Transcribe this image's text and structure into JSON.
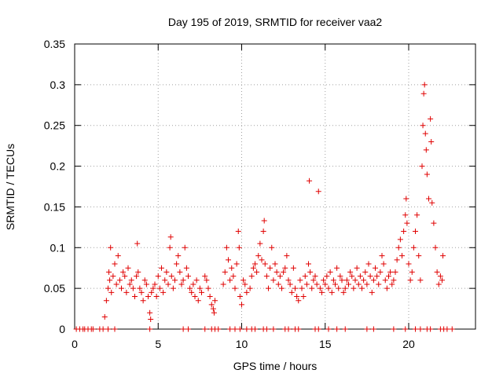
{
  "chart_data": {
    "type": "scatter",
    "title": "Day 195 of 2019, SRMTID for receiver vaa2",
    "xlabel": "GPS time / hours",
    "ylabel": "SRMTID / TECUs",
    "xlim": [
      0,
      24
    ],
    "ylim": [
      0,
      0.35
    ],
    "xticks": [
      0,
      5,
      10,
      15,
      20
    ],
    "xtick_labels": [
      "0",
      "5",
      "10",
      "15",
      "20"
    ],
    "yticks": [
      0,
      0.05,
      0.1,
      0.15,
      0.2,
      0.25,
      0.3,
      0.35
    ],
    "ytick_labels": [
      "0",
      "0.05",
      "0.1",
      "0.15",
      "0.2",
      "0.25",
      "0.3",
      "0.35"
    ],
    "grid": true,
    "marker": "plus",
    "series": [
      {
        "name": "SRMTID",
        "color": "#e00000",
        "points": [
          [
            1.8,
            0.015
          ],
          [
            1.9,
            0.035
          ],
          [
            2.0,
            0.05
          ],
          [
            2.05,
            0.07
          ],
          [
            2.1,
            0.06
          ],
          [
            2.15,
            0.1
          ],
          [
            2.2,
            0.045
          ],
          [
            2.3,
            0.065
          ],
          [
            2.4,
            0.08
          ],
          [
            2.5,
            0.055
          ],
          [
            2.6,
            0.09
          ],
          [
            2.7,
            0.06
          ],
          [
            2.8,
            0.05
          ],
          [
            2.9,
            0.07
          ],
          [
            3.0,
            0.065
          ],
          [
            3.1,
            0.045
          ],
          [
            3.2,
            0.075
          ],
          [
            3.3,
            0.055
          ],
          [
            3.4,
            0.06
          ],
          [
            3.5,
            0.05
          ],
          [
            3.6,
            0.04
          ],
          [
            3.7,
            0.065
          ],
          [
            3.75,
            0.105
          ],
          [
            3.8,
            0.07
          ],
          [
            3.9,
            0.05
          ],
          [
            4.0,
            0.045
          ],
          [
            4.1,
            0.035
          ],
          [
            4.2,
            0.06
          ],
          [
            4.3,
            0.055
          ],
          [
            4.4,
            0.04
          ],
          [
            4.5,
            0.02
          ],
          [
            4.55,
            0.012
          ],
          [
            4.6,
            0.045
          ],
          [
            4.7,
            0.05
          ],
          [
            4.8,
            0.055
          ],
          [
            4.9,
            0.04
          ],
          [
            5.0,
            0.065
          ],
          [
            5.1,
            0.05
          ],
          [
            5.2,
            0.075
          ],
          [
            5.3,
            0.045
          ],
          [
            5.4,
            0.06
          ],
          [
            5.5,
            0.07
          ],
          [
            5.6,
            0.055
          ],
          [
            5.7,
            0.1
          ],
          [
            5.75,
            0.113
          ],
          [
            5.8,
            0.065
          ],
          [
            5.9,
            0.05
          ],
          [
            6.0,
            0.06
          ],
          [
            6.1,
            0.08
          ],
          [
            6.2,
            0.09
          ],
          [
            6.3,
            0.07
          ],
          [
            6.4,
            0.055
          ],
          [
            6.5,
            0.06
          ],
          [
            6.6,
            0.1
          ],
          [
            6.7,
            0.075
          ],
          [
            6.8,
            0.065
          ],
          [
            6.9,
            0.05
          ],
          [
            7.0,
            0.045
          ],
          [
            7.1,
            0.055
          ],
          [
            7.2,
            0.04
          ],
          [
            7.3,
            0.06
          ],
          [
            7.4,
            0.035
          ],
          [
            7.5,
            0.05
          ],
          [
            7.6,
            0.045
          ],
          [
            7.8,
            0.065
          ],
          [
            7.9,
            0.06
          ],
          [
            8.0,
            0.05
          ],
          [
            8.1,
            0.04
          ],
          [
            8.2,
            0.03
          ],
          [
            8.3,
            0.025
          ],
          [
            8.35,
            0.02
          ],
          [
            8.4,
            0.035
          ],
          [
            8.9,
            0.055
          ],
          [
            9.0,
            0.07
          ],
          [
            9.1,
            0.1
          ],
          [
            9.2,
            0.085
          ],
          [
            9.3,
            0.06
          ],
          [
            9.4,
            0.075
          ],
          [
            9.5,
            0.065
          ],
          [
            9.6,
            0.05
          ],
          [
            9.7,
            0.08
          ],
          [
            9.8,
            0.12
          ],
          [
            9.85,
            0.1
          ],
          [
            9.9,
            0.04
          ],
          [
            10.0,
            0.03
          ],
          [
            10.1,
            0.06
          ],
          [
            10.2,
            0.055
          ],
          [
            10.3,
            0.045
          ],
          [
            10.5,
            0.05
          ],
          [
            10.6,
            0.065
          ],
          [
            10.7,
            0.075
          ],
          [
            10.8,
            0.08
          ],
          [
            10.9,
            0.07
          ],
          [
            11.0,
            0.09
          ],
          [
            11.1,
            0.105
          ],
          [
            11.2,
            0.085
          ],
          [
            11.3,
            0.12
          ],
          [
            11.35,
            0.133
          ],
          [
            11.4,
            0.08
          ],
          [
            11.5,
            0.065
          ],
          [
            11.6,
            0.05
          ],
          [
            11.7,
            0.075
          ],
          [
            11.8,
            0.1
          ],
          [
            11.9,
            0.06
          ],
          [
            12.0,
            0.08
          ],
          [
            12.1,
            0.07
          ],
          [
            12.2,
            0.055
          ],
          [
            12.3,
            0.065
          ],
          [
            12.4,
            0.05
          ],
          [
            12.5,
            0.07
          ],
          [
            12.6,
            0.075
          ],
          [
            12.7,
            0.09
          ],
          [
            12.8,
            0.06
          ],
          [
            12.9,
            0.055
          ],
          [
            13.0,
            0.045
          ],
          [
            13.1,
            0.075
          ],
          [
            13.2,
            0.05
          ],
          [
            13.3,
            0.04
          ],
          [
            13.4,
            0.035
          ],
          [
            13.5,
            0.06
          ],
          [
            13.6,
            0.05
          ],
          [
            13.7,
            0.04
          ],
          [
            13.8,
            0.065
          ],
          [
            13.9,
            0.055
          ],
          [
            14.0,
            0.08
          ],
          [
            14.05,
            0.182
          ],
          [
            14.1,
            0.07
          ],
          [
            14.2,
            0.05
          ],
          [
            14.3,
            0.06
          ],
          [
            14.4,
            0.065
          ],
          [
            14.5,
            0.055
          ],
          [
            14.6,
            0.169
          ],
          [
            14.7,
            0.05
          ],
          [
            14.8,
            0.045
          ],
          [
            14.9,
            0.06
          ],
          [
            15.0,
            0.055
          ],
          [
            15.1,
            0.065
          ],
          [
            15.2,
            0.05
          ],
          [
            15.3,
            0.07
          ],
          [
            15.4,
            0.045
          ],
          [
            15.5,
            0.06
          ],
          [
            15.6,
            0.055
          ],
          [
            15.7,
            0.075
          ],
          [
            15.8,
            0.05
          ],
          [
            15.9,
            0.065
          ],
          [
            16.0,
            0.06
          ],
          [
            16.1,
            0.045
          ],
          [
            16.2,
            0.05
          ],
          [
            16.3,
            0.06
          ],
          [
            16.4,
            0.055
          ],
          [
            16.5,
            0.07
          ],
          [
            16.6,
            0.065
          ],
          [
            16.7,
            0.05
          ],
          [
            16.8,
            0.06
          ],
          [
            16.9,
            0.075
          ],
          [
            17.0,
            0.055
          ],
          [
            17.1,
            0.065
          ],
          [
            17.2,
            0.05
          ],
          [
            17.3,
            0.06
          ],
          [
            17.4,
            0.07
          ],
          [
            17.5,
            0.055
          ],
          [
            17.6,
            0.08
          ],
          [
            17.7,
            0.065
          ],
          [
            17.8,
            0.045
          ],
          [
            17.9,
            0.06
          ],
          [
            18.0,
            0.075
          ],
          [
            18.1,
            0.065
          ],
          [
            18.2,
            0.055
          ],
          [
            18.3,
            0.07
          ],
          [
            18.4,
            0.09
          ],
          [
            18.5,
            0.08
          ],
          [
            18.6,
            0.06
          ],
          [
            18.7,
            0.05
          ],
          [
            18.8,
            0.065
          ],
          [
            18.9,
            0.07
          ],
          [
            19.0,
            0.055
          ],
          [
            19.1,
            0.06
          ],
          [
            19.2,
            0.07
          ],
          [
            19.3,
            0.085
          ],
          [
            19.4,
            0.1
          ],
          [
            19.5,
            0.11
          ],
          [
            19.6,
            0.09
          ],
          [
            19.7,
            0.12
          ],
          [
            19.8,
            0.14
          ],
          [
            19.85,
            0.16
          ],
          [
            19.9,
            0.13
          ],
          [
            20.0,
            0.08
          ],
          [
            20.1,
            0.06
          ],
          [
            20.2,
            0.07
          ],
          [
            20.3,
            0.1
          ],
          [
            20.4,
            0.12
          ],
          [
            20.5,
            0.14
          ],
          [
            20.6,
            0.09
          ],
          [
            20.7,
            0.06
          ],
          [
            20.8,
            0.2
          ],
          [
            20.85,
            0.25
          ],
          [
            20.9,
            0.289
          ],
          [
            20.95,
            0.3
          ],
          [
            21.0,
            0.24
          ],
          [
            21.05,
            0.22
          ],
          [
            21.1,
            0.19
          ],
          [
            21.2,
            0.16
          ],
          [
            21.3,
            0.258
          ],
          [
            21.35,
            0.23
          ],
          [
            21.4,
            0.155
          ],
          [
            21.5,
            0.13
          ],
          [
            21.6,
            0.1
          ],
          [
            21.7,
            0.07
          ],
          [
            21.8,
            0.055
          ],
          [
            21.9,
            0.065
          ],
          [
            22.0,
            0.06
          ],
          [
            22.05,
            0.09
          ]
        ],
        "zero_points": [
          0.1,
          0.3,
          0.5,
          0.6,
          0.8,
          1.0,
          1.1,
          1.5,
          1.7,
          2.0,
          2.4,
          4.5,
          6.5,
          6.8,
          7.8,
          8.2,
          8.4,
          8.6,
          9.3,
          9.6,
          9.9,
          10.3,
          10.6,
          10.8,
          11.3,
          11.5,
          11.9,
          12.6,
          12.8,
          13.2,
          13.4,
          14.4,
          14.6,
          15.2,
          15.7,
          16.2,
          17.5,
          17.9,
          19.1,
          19.8,
          20.4,
          20.7,
          21.1,
          21.3,
          21.9,
          22.1,
          22.3,
          22.6
        ]
      }
    ]
  }
}
